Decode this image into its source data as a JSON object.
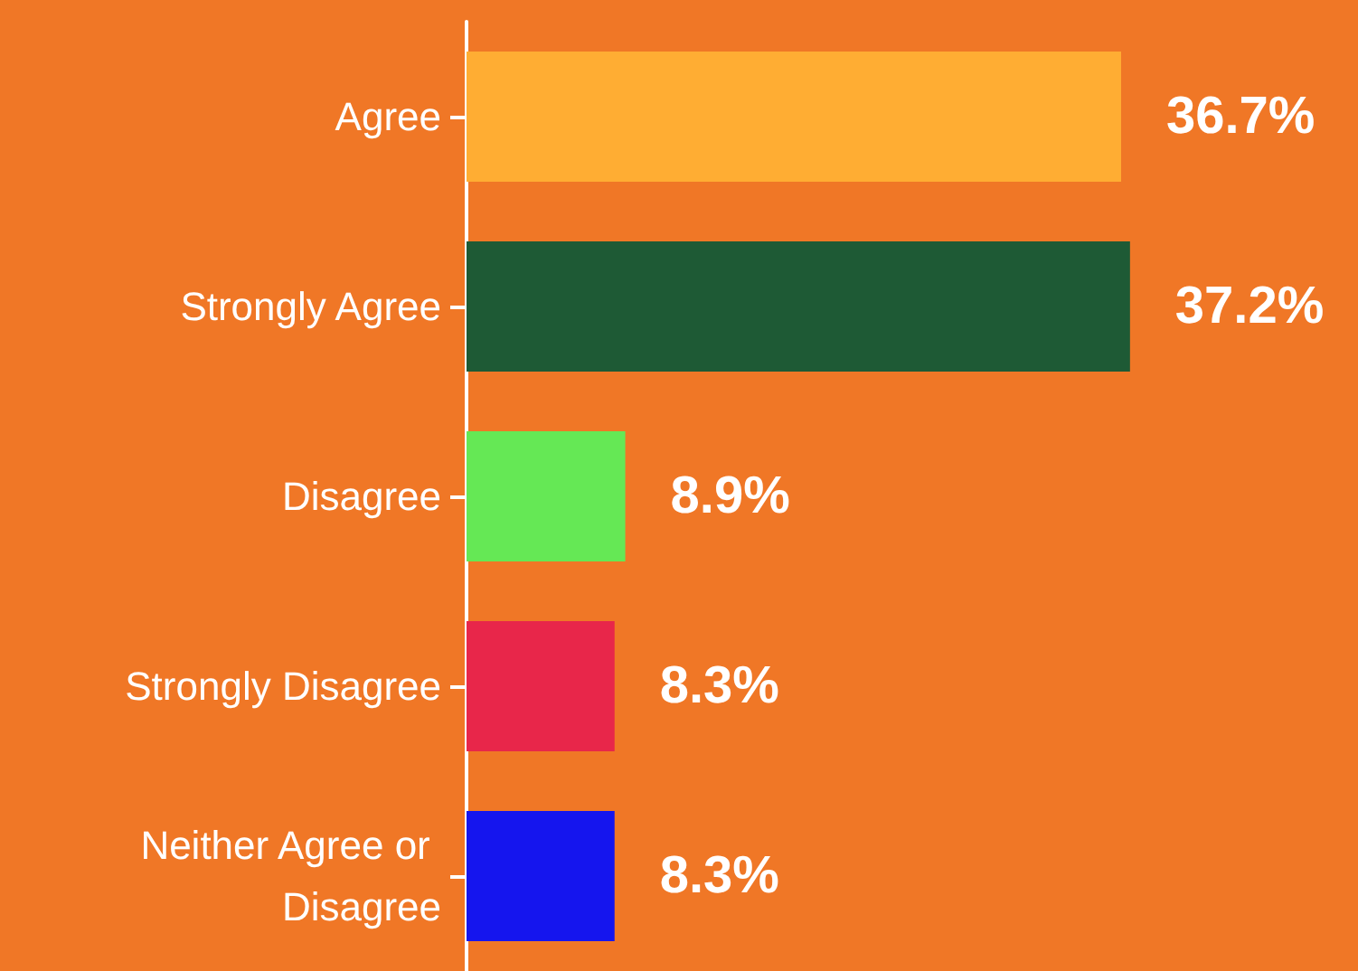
{
  "chart_data": {
    "type": "bar",
    "orientation": "horizontal",
    "categories": [
      "Agree",
      "Strongly Agree",
      "Disagree",
      "Strongly Disagree",
      "Neither Agree or Disagree"
    ],
    "values": [
      36.7,
      37.2,
      8.9,
      8.3,
      8.3
    ],
    "colors": [
      "#ffad33",
      "#1e5a35",
      "#65e855",
      "#e8264a",
      "#1515ee"
    ],
    "value_labels": [
      "36.7%",
      "37.2%",
      "8.9%",
      "8.3%",
      "8.3%"
    ]
  }
}
